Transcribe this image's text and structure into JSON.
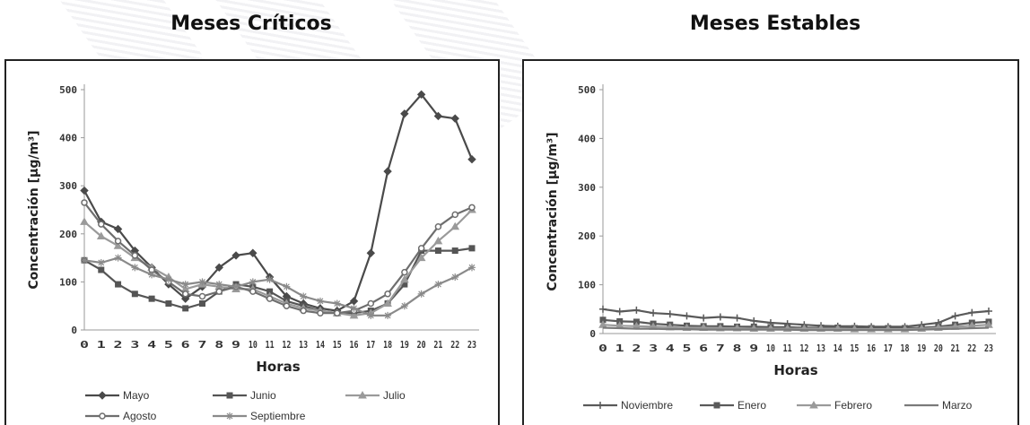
{
  "headings": {
    "left": "Meses Críticos",
    "right": "Meses Estables"
  },
  "chart_data": [
    {
      "type": "line",
      "title": "Meses Críticos",
      "xlabel": "Horas",
      "ylabel": "Concentración [µg/m³]",
      "ylim": [
        0,
        500
      ],
      "yticks": [
        0,
        100,
        200,
        300,
        400,
        500
      ],
      "x": [
        0,
        1,
        2,
        3,
        4,
        5,
        6,
        7,
        8,
        9,
        10,
        11,
        12,
        13,
        14,
        15,
        16,
        17,
        18,
        19,
        20,
        21,
        22,
        23
      ],
      "legend_position": "bottom",
      "series": [
        {
          "name": "Mayo",
          "color": "#4a4a4a",
          "marker": "diamond",
          "values": [
            290,
            225,
            210,
            165,
            130,
            95,
            65,
            90,
            130,
            155,
            160,
            110,
            70,
            55,
            45,
            40,
            60,
            160,
            330,
            450,
            490,
            445,
            440,
            355
          ]
        },
        {
          "name": "Junio",
          "color": "#555555",
          "marker": "square",
          "values": [
            145,
            125,
            95,
            75,
            65,
            55,
            45,
            55,
            80,
            95,
            90,
            80,
            60,
            50,
            40,
            35,
            35,
            40,
            55,
            95,
            165,
            165,
            165,
            170
          ]
        },
        {
          "name": "Julio",
          "color": "#9a9a9a",
          "marker": "triangle",
          "values": [
            225,
            195,
            175,
            150,
            130,
            110,
            85,
            95,
            90,
            85,
            85,
            70,
            55,
            45,
            40,
            35,
            30,
            35,
            55,
            105,
            150,
            185,
            215,
            250
          ]
        },
        {
          "name": "Agosto",
          "color": "#6e6e6e",
          "marker": "circle",
          "values": [
            265,
            220,
            185,
            155,
            125,
            100,
            75,
            70,
            80,
            90,
            80,
            65,
            50,
            40,
            35,
            35,
            40,
            55,
            75,
            120,
            170,
            215,
            240,
            255
          ]
        },
        {
          "name": "Septiembre",
          "color": "#8a8a8a",
          "marker": "star",
          "values": [
            145,
            140,
            150,
            130,
            115,
            105,
            95,
            100,
            95,
            90,
            100,
            105,
            90,
            70,
            60,
            55,
            45,
            30,
            30,
            50,
            75,
            95,
            110,
            130
          ]
        }
      ]
    },
    {
      "type": "line",
      "title": "Meses Estables",
      "xlabel": "Horas",
      "ylabel": "Concentración [µg/m³]",
      "ylim": [
        0,
        500
      ],
      "yticks": [
        0,
        100,
        200,
        300,
        400,
        500
      ],
      "x": [
        0,
        1,
        2,
        3,
        4,
        5,
        6,
        7,
        8,
        9,
        10,
        11,
        12,
        13,
        14,
        15,
        16,
        17,
        18,
        19,
        20,
        21,
        22,
        23
      ],
      "legend_position": "bottom",
      "series": [
        {
          "name": "Noviembre",
          "color": "#5a5a5a",
          "marker": "plus",
          "values": [
            50,
            45,
            48,
            42,
            40,
            36,
            32,
            34,
            32,
            26,
            22,
            20,
            18,
            16,
            15,
            15,
            14,
            14,
            14,
            18,
            22,
            36,
            43,
            46
          ]
        },
        {
          "name": "Enero",
          "color": "#5a5a5a",
          "marker": "square",
          "values": [
            28,
            25,
            24,
            20,
            18,
            16,
            15,
            15,
            14,
            14,
            13,
            13,
            12,
            12,
            12,
            11,
            11,
            11,
            11,
            12,
            14,
            18,
            22,
            24
          ]
        },
        {
          "name": "Febrero",
          "color": "#9a9a9a",
          "marker": "triangle",
          "values": [
            18,
            16,
            15,
            14,
            13,
            12,
            12,
            11,
            11,
            10,
            10,
            10,
            10,
            10,
            10,
            9,
            9,
            9,
            9,
            10,
            12,
            14,
            16,
            18
          ]
        },
        {
          "name": "Marzo",
          "color": "#7a7a7a",
          "marker": "none",
          "values": [
            12,
            11,
            10,
            10,
            9,
            9,
            8,
            8,
            8,
            8,
            8,
            8,
            7,
            7,
            7,
            7,
            7,
            7,
            7,
            8,
            9,
            10,
            11,
            12
          ]
        }
      ]
    }
  ]
}
